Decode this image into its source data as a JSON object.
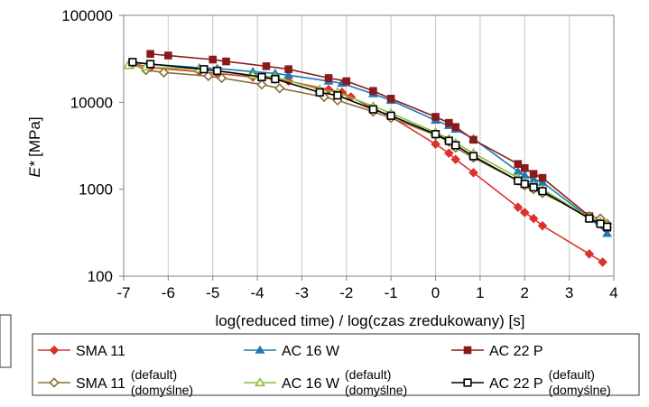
{
  "chart_data": {
    "type": "line",
    "xlabel": "log(reduced time) / log(czas zredukowany) [s]",
    "ylabel_base": "E*",
    "ylabel_unit": " [MPa]",
    "xlim": [
      -7,
      4
    ],
    "ylim": [
      100,
      100000
    ],
    "y_scale": "log",
    "x_ticks": [
      "-7",
      "-6",
      "-5",
      "-4",
      "-3",
      "-2",
      "-1",
      "0",
      "1",
      "2",
      "3",
      "4"
    ],
    "y_ticks": [
      "100",
      "1000",
      "10000",
      "100000"
    ],
    "grid": "vertical only",
    "legend_position": "bottom",
    "series": [
      {
        "name": "SMA 11",
        "color": "#d9342b",
        "marker": "diamond-filled",
        "points": [
          [
            -6.8,
            28000
          ],
          [
            -6.4,
            25000
          ],
          [
            -5.3,
            22500
          ],
          [
            -4.9,
            21500
          ],
          [
            -4.1,
            19500
          ],
          [
            -3.6,
            18500
          ],
          [
            -3.3,
            17500
          ],
          [
            -2.4,
            14000
          ],
          [
            -2.1,
            13000
          ],
          [
            -1.9,
            11500
          ],
          [
            -1.4,
            8500
          ],
          [
            -1.0,
            6800
          ],
          [
            0.0,
            3300
          ],
          [
            0.3,
            2600
          ],
          [
            0.45,
            2200
          ],
          [
            0.85,
            1550
          ],
          [
            1.85,
            620
          ],
          [
            2.0,
            540
          ],
          [
            2.2,
            460
          ],
          [
            2.4,
            380
          ],
          [
            3.45,
            180
          ],
          [
            3.75,
            145
          ]
        ]
      },
      {
        "name": "AC 16 W",
        "color": "#1f78b4",
        "marker": "triangle-filled",
        "points": [
          [
            -6.8,
            28500
          ],
          [
            -6.4,
            27500
          ],
          [
            -5.3,
            25000
          ],
          [
            -4.9,
            24500
          ],
          [
            -4.1,
            22500
          ],
          [
            -3.6,
            21500
          ],
          [
            -3.3,
            20500
          ],
          [
            -2.4,
            17500
          ],
          [
            -2.1,
            16500
          ],
          [
            -1.4,
            12500
          ],
          [
            -1.0,
            10500
          ],
          [
            0.0,
            6200
          ],
          [
            0.3,
            5400
          ],
          [
            0.45,
            4900
          ],
          [
            0.85,
            3800
          ],
          [
            1.85,
            1600
          ],
          [
            2.0,
            1450
          ],
          [
            2.2,
            1300
          ],
          [
            2.4,
            1200
          ],
          [
            3.45,
            470
          ],
          [
            3.85,
            310
          ]
        ]
      },
      {
        "name": "AC 22 P",
        "color": "#8b1a1a",
        "marker": "square-filled",
        "points": [
          [
            -6.4,
            36000
          ],
          [
            -6.0,
            34500
          ],
          [
            -5.0,
            31000
          ],
          [
            -4.7,
            29500
          ],
          [
            -3.8,
            26000
          ],
          [
            -3.3,
            24000
          ],
          [
            -2.4,
            19000
          ],
          [
            -2.0,
            17500
          ],
          [
            -1.4,
            13500
          ],
          [
            -1.0,
            11000
          ],
          [
            0.0,
            6800
          ],
          [
            0.3,
            5800
          ],
          [
            0.45,
            5200
          ],
          [
            0.85,
            3700
          ],
          [
            1.85,
            1950
          ],
          [
            2.0,
            1750
          ],
          [
            2.2,
            1500
          ],
          [
            2.4,
            1350
          ],
          [
            3.45,
            490
          ],
          [
            3.7,
            400
          ],
          [
            3.85,
            360
          ]
        ]
      },
      {
        "name": "SMA 11",
        "annotation_top": "(default)",
        "annotation_bottom": "(domyślne)",
        "color": "#8b6f3a",
        "marker": "diamond-hollow",
        "points": [
          [
            -6.8,
            27500
          ],
          [
            -6.5,
            23500
          ],
          [
            -6.1,
            22000
          ],
          [
            -5.1,
            20000
          ],
          [
            -4.8,
            19000
          ],
          [
            -3.9,
            16000
          ],
          [
            -3.5,
            14500
          ],
          [
            -2.5,
            11500
          ],
          [
            -2.2,
            10500
          ],
          [
            -1.4,
            7800
          ],
          [
            -1.0,
            6600
          ],
          [
            0.0,
            4200
          ],
          [
            0.3,
            3500
          ],
          [
            0.45,
            3000
          ],
          [
            0.85,
            2300
          ],
          [
            1.85,
            1250
          ],
          [
            2.0,
            1100
          ],
          [
            2.2,
            1000
          ],
          [
            2.4,
            900
          ],
          [
            3.45,
            490
          ],
          [
            3.7,
            460
          ],
          [
            3.85,
            400
          ]
        ]
      },
      {
        "name": "AC 16 W",
        "annotation_top": "(default)",
        "annotation_bottom": "(domyślne)",
        "color": "#8bbf3a",
        "marker": "triangle-hollow",
        "points": [
          [
            -6.9,
            26500
          ],
          [
            -6.5,
            25500
          ],
          [
            -5.3,
            24000
          ],
          [
            -4.9,
            23000
          ],
          [
            -4.1,
            20500
          ],
          [
            -3.6,
            19500
          ],
          [
            -2.6,
            14000
          ],
          [
            -2.2,
            13000
          ],
          [
            -1.4,
            9000
          ],
          [
            -1.0,
            7500
          ],
          [
            0.0,
            4500
          ],
          [
            0.3,
            3800
          ],
          [
            0.45,
            3400
          ],
          [
            0.85,
            2600
          ],
          [
            1.85,
            1350
          ],
          [
            2.0,
            1200
          ],
          [
            2.2,
            1100
          ],
          [
            2.4,
            1000
          ],
          [
            3.45,
            470
          ],
          [
            3.7,
            420
          ],
          [
            3.85,
            390
          ]
        ]
      },
      {
        "name": "AC 22 P",
        "annotation_top": "(default)",
        "annotation_bottom": "(domyślne)",
        "color": "#000000",
        "marker": "square-hollow",
        "points": [
          [
            -6.8,
            29000
          ],
          [
            -6.4,
            27500
          ],
          [
            -5.2,
            24000
          ],
          [
            -4.9,
            23000
          ],
          [
            -3.9,
            19500
          ],
          [
            -3.6,
            18500
          ],
          [
            -2.6,
            13000
          ],
          [
            -2.2,
            12000
          ],
          [
            -1.4,
            8300
          ],
          [
            -1.0,
            7000
          ],
          [
            0.0,
            4300
          ],
          [
            0.3,
            3600
          ],
          [
            0.45,
            3200
          ],
          [
            0.85,
            2400
          ],
          [
            1.85,
            1250
          ],
          [
            2.0,
            1150
          ],
          [
            2.2,
            1050
          ],
          [
            2.4,
            950
          ],
          [
            3.45,
            460
          ],
          [
            3.7,
            400
          ],
          [
            3.85,
            370
          ]
        ]
      }
    ]
  }
}
